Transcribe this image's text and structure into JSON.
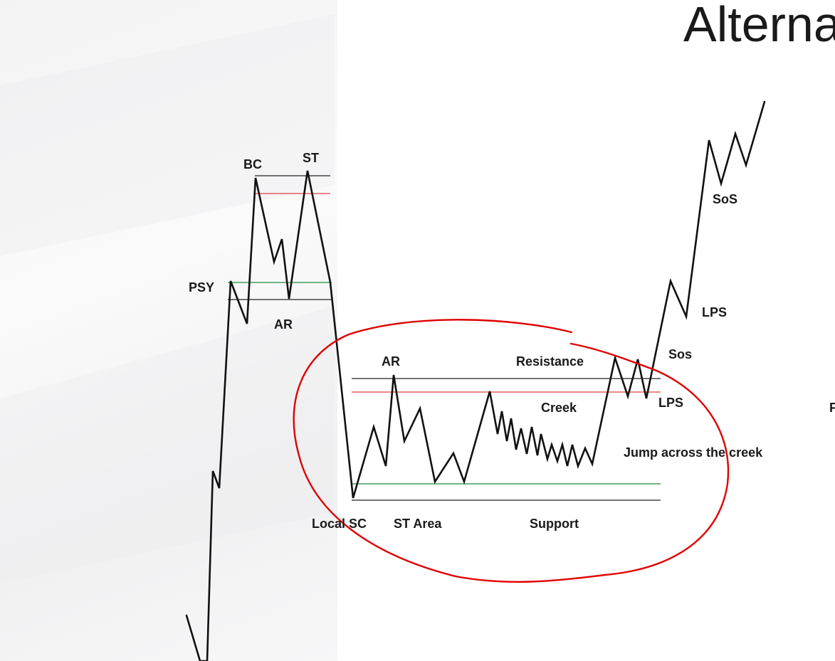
{
  "title": "Alterna",
  "labels": {
    "bc": "BC",
    "st_top": "ST",
    "psy": "PSY",
    "ar_top": "AR",
    "ar_range": "AR",
    "resistance": "Resistance",
    "creek": "Creek",
    "lps_low": "LPS",
    "sos_low": "Sos",
    "lps_high": "LPS",
    "sos_high": "SoS",
    "jump": "Jump across the creek",
    "local_sc": "Local SC",
    "st_area": "ST Area",
    "support": "Support",
    "cut_right": "F"
  }
}
